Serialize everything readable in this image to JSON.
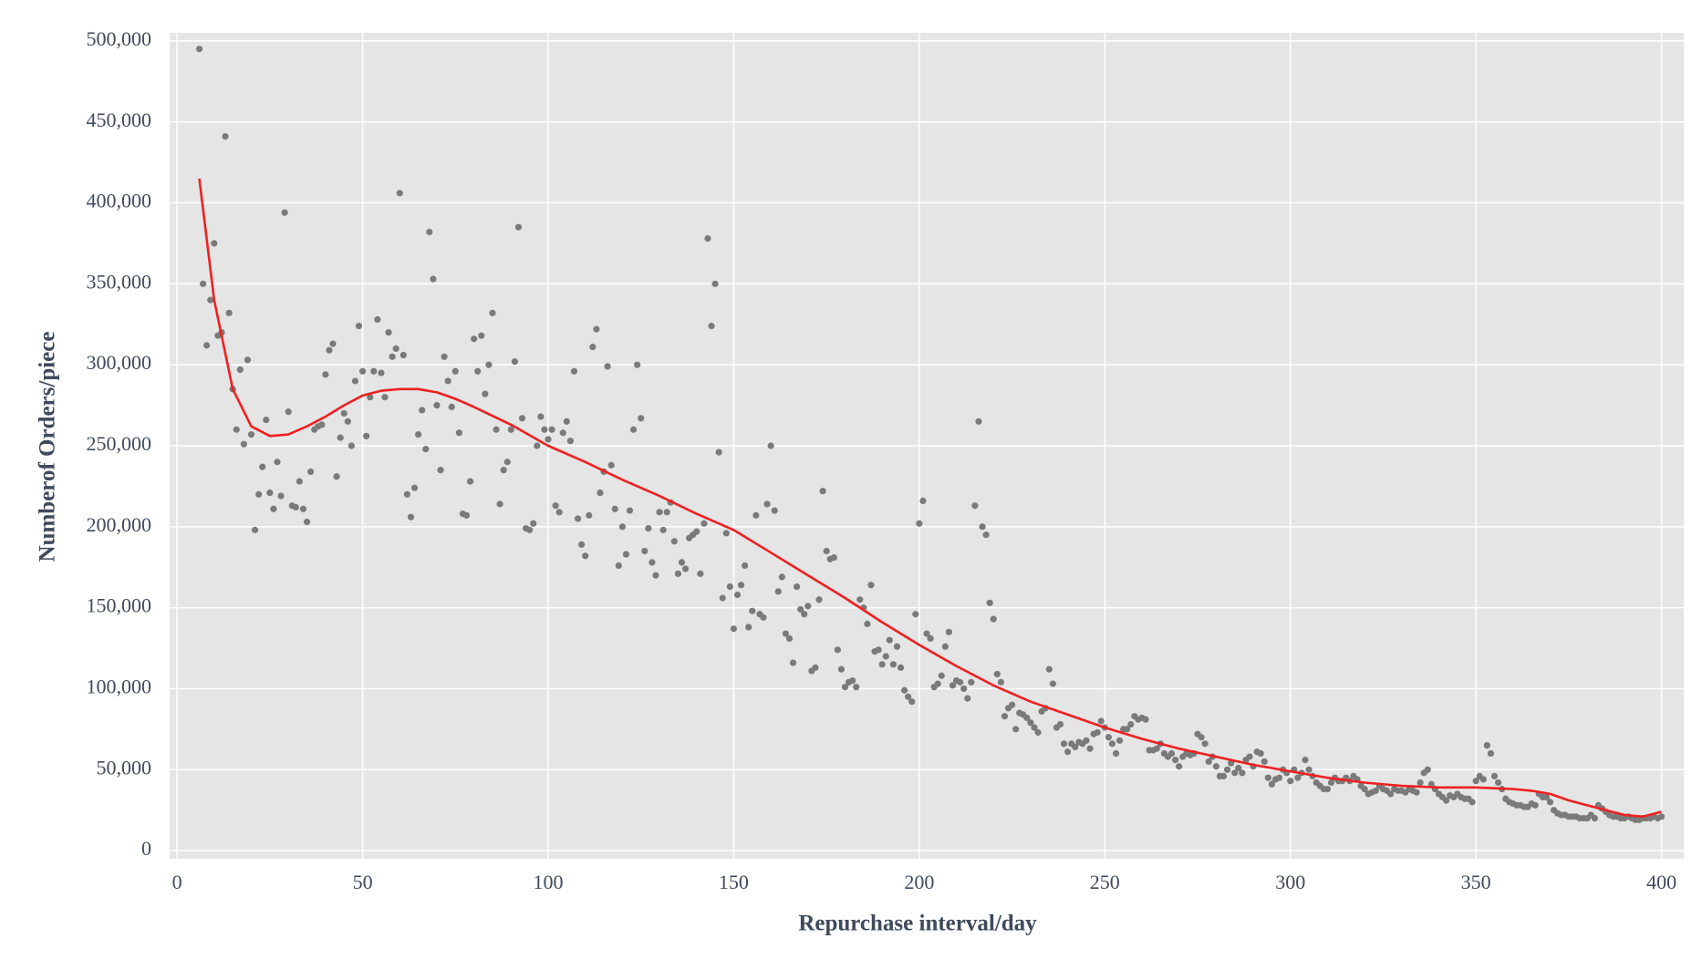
{
  "chart_data": {
    "type": "scatter",
    "xlabel": "Repurchase interval/day",
    "ylabel": "Numberof Orders/piece",
    "xlim": [
      -2,
      406
    ],
    "ylim": [
      -5000,
      505000
    ],
    "xticks": [
      0,
      50,
      100,
      150,
      200,
      250,
      300,
      350,
      400
    ],
    "yticks": [
      0,
      {
        "value": 50000,
        "label": "50,000"
      },
      {
        "value": 100000,
        "label": "100,000"
      },
      {
        "value": 150000,
        "label": "150,000"
      },
      {
        "value": 200000,
        "label": "200,000"
      },
      {
        "value": 250000,
        "label": "250,000"
      },
      {
        "value": 300000,
        "label": "300,000"
      },
      {
        "value": 350000,
        "label": "350,000"
      },
      {
        "value": 400000,
        "label": "400,000"
      },
      {
        "value": 450000,
        "label": "450,000"
      },
      {
        "value": 500000,
        "label": "500,000"
      }
    ],
    "grid": true,
    "series": [
      {
        "type": "scatter",
        "color": "#7a7a7a",
        "x": [
          6,
          7,
          8,
          9,
          10,
          11,
          12,
          13,
          14,
          15,
          16,
          17,
          18,
          19,
          20,
          21,
          22,
          23,
          24,
          25,
          26,
          27,
          28,
          29,
          30,
          31,
          32,
          33,
          34,
          35,
          36,
          37,
          38,
          39,
          40,
          41,
          42,
          43,
          44,
          45,
          46,
          47,
          48,
          49,
          50,
          51,
          52,
          53,
          54,
          55,
          56,
          57,
          58,
          59,
          60,
          61,
          62,
          63,
          64,
          65,
          66,
          67,
          68,
          69,
          70,
          71,
          72,
          73,
          74,
          75,
          76,
          77,
          78,
          79,
          80,
          81,
          82,
          83,
          84,
          85,
          86,
          87,
          88,
          89,
          90,
          91,
          92,
          93,
          94,
          95,
          96,
          97,
          98,
          99,
          100,
          101,
          102,
          103,
          104,
          105,
          106,
          107,
          108,
          109,
          110,
          111,
          112,
          113,
          114,
          115,
          116,
          117,
          118,
          119,
          120,
          121,
          122,
          123,
          124,
          125,
          126,
          127,
          128,
          129,
          130,
          131,
          132,
          133,
          134,
          135,
          136,
          137,
          138,
          139,
          140,
          141,
          142,
          143,
          144,
          145,
          146,
          147,
          148,
          149,
          150,
          151,
          152,
          153,
          154,
          155,
          156,
          157,
          158,
          159,
          160,
          161,
          162,
          163,
          164,
          165,
          166,
          167,
          168,
          169,
          170,
          171,
          172,
          173,
          174,
          175,
          176,
          177,
          178,
          179,
          180,
          181,
          182,
          183,
          184,
          185,
          186,
          187,
          188,
          189,
          190,
          191,
          192,
          193,
          194,
          195,
          196,
          197,
          198,
          199,
          200,
          201,
          202,
          203,
          204,
          205,
          206,
          207,
          208,
          209,
          210,
          211,
          212,
          213,
          214,
          215,
          216,
          217,
          218,
          219,
          220,
          221,
          222,
          223,
          224,
          225,
          226,
          227,
          228,
          229,
          230,
          231,
          232,
          233,
          234,
          235,
          236,
          237,
          238,
          239,
          240,
          241,
          242,
          243,
          244,
          245,
          246,
          247,
          248,
          249,
          250,
          251,
          252,
          253,
          254,
          255,
          256,
          257,
          258,
          259,
          260,
          261,
          262,
          263,
          264,
          265,
          266,
          267,
          268,
          269,
          270,
          271,
          272,
          273,
          274,
          275,
          276,
          277,
          278,
          279,
          280,
          281,
          282,
          283,
          284,
          285,
          286,
          287,
          288,
          289,
          290,
          291,
          292,
          293,
          294,
          295,
          296,
          297,
          298,
          299,
          300,
          301,
          302,
          303,
          304,
          305,
          306,
          307,
          308,
          309,
          310,
          311,
          312,
          313,
          314,
          315,
          316,
          317,
          318,
          319,
          320,
          321,
          322,
          323,
          324,
          325,
          326,
          327,
          328,
          329,
          330,
          331,
          332,
          333,
          334,
          335,
          336,
          337,
          338,
          339,
          340,
          341,
          342,
          343,
          344,
          345,
          346,
          347,
          348,
          349,
          350,
          351,
          352,
          353,
          354,
          355,
          356,
          357,
          358,
          359,
          360,
          361,
          362,
          363,
          364,
          365,
          366,
          367,
          368,
          369,
          370,
          371,
          372,
          373,
          374,
          375,
          376,
          377,
          378,
          379,
          380,
          381,
          382,
          383,
          384,
          385,
          386,
          387,
          388,
          389,
          390,
          391,
          392,
          393,
          394,
          395,
          396,
          397,
          398,
          399,
          400
        ],
        "values": [
          495000,
          350000,
          312000,
          340000,
          375000,
          318000,
          320000,
          441000,
          332000,
          285000,
          260000,
          297000,
          251000,
          303000,
          257000,
          198000,
          220000,
          237000,
          266000,
          221000,
          211000,
          240000,
          219000,
          394000,
          271000,
          213000,
          212000,
          228000,
          211000,
          203000,
          234000,
          260000,
          262000,
          263000,
          294000,
          309000,
          313000,
          231000,
          255000,
          270000,
          265000,
          250000,
          290000,
          324000,
          296000,
          256000,
          280000,
          296000,
          328000,
          295000,
          280000,
          320000,
          305000,
          310000,
          406000,
          306000,
          220000,
          206000,
          224000,
          257000,
          272000,
          248000,
          382000,
          353000,
          275000,
          235000,
          305000,
          290000,
          274000,
          296000,
          258000,
          208000,
          207000,
          228000,
          316000,
          296000,
          318000,
          282000,
          300000,
          332000,
          260000,
          214000,
          235000,
          240000,
          260000,
          302000,
          385000,
          267000,
          199000,
          198000,
          202000,
          250000,
          268000,
          260000,
          254000,
          260000,
          213000,
          209000,
          258000,
          265000,
          253000,
          296000,
          205000,
          189000,
          182000,
          207000,
          311000,
          322000,
          221000,
          234000,
          299000,
          238000,
          211000,
          176000,
          200000,
          183000,
          210000,
          260000,
          300000,
          267000,
          185000,
          199000,
          178000,
          170000,
          209000,
          198000,
          209000,
          215000,
          191000,
          171000,
          178000,
          174000,
          193000,
          195000,
          197000,
          171000,
          202000,
          378000,
          324000,
          350000,
          246000,
          156000,
          196000,
          163000,
          137000,
          158000,
          164000,
          176000,
          138000,
          148000,
          207000,
          146000,
          144000,
          214000,
          250000,
          210000,
          160000,
          169000,
          134000,
          131000,
          116000,
          163000,
          149000,
          146000,
          151000,
          111000,
          113000,
          155000,
          222000,
          185000,
          180000,
          181000,
          124000,
          112000,
          101000,
          104000,
          105000,
          101000,
          155000,
          150000,
          140000,
          164000,
          123000,
          124000,
          115000,
          120000,
          130000,
          115000,
          126000,
          113000,
          99000,
          95000,
          92000,
          146000,
          202000,
          216000,
          134000,
          131000,
          101000,
          103000,
          108000,
          126000,
          135000,
          102000,
          105000,
          104000,
          100000,
          94000,
          104000,
          213000,
          265000,
          200000,
          195000,
          153000,
          143000,
          109000,
          104000,
          83000,
          88000,
          90000,
          75000,
          85000,
          84000,
          82000,
          79000,
          76000,
          73000,
          86000,
          88000,
          112000,
          103000,
          76000,
          78000,
          66000,
          61000,
          66000,
          64000,
          67000,
          66000,
          68000,
          63000,
          72000,
          73000,
          80000,
          76000,
          70000,
          66000,
          60000,
          68000,
          75000,
          75000,
          78000,
          83000,
          81000,
          82000,
          81000,
          62000,
          62000,
          63000,
          66000,
          60000,
          58000,
          60000,
          56000,
          52000,
          58000,
          60000,
          59000,
          60000,
          72000,
          70000,
          66000,
          55000,
          58000,
          52000,
          46000,
          46000,
          50000,
          54000,
          48000,
          51000,
          48000,
          56000,
          58000,
          52000,
          61000,
          60000,
          55000,
          45000,
          41000,
          44000,
          45000,
          50000,
          48000,
          43000,
          50000,
          45000,
          48000,
          56000,
          50000,
          46000,
          42000,
          40000,
          38000,
          38000,
          42000,
          45000,
          43000,
          43000,
          45000,
          43000,
          46000,
          44000,
          40000,
          38000,
          35000,
          36000,
          37000,
          40000,
          38000,
          37000,
          35000,
          38000,
          37000,
          37000,
          36000,
          38000,
          37000,
          36000,
          42000,
          48000,
          50000,
          41000,
          38000,
          35000,
          33000,
          31000,
          34000,
          33000,
          35000,
          33000,
          32000,
          32000,
          30000,
          43000,
          46000,
          44000,
          65000,
          60000,
          46000,
          42000,
          38000,
          32000,
          30000,
          29000,
          28000,
          28000,
          27000,
          27000,
          29000,
          28000,
          35000,
          33000,
          33000,
          30000,
          25000,
          23000,
          22000,
          22000,
          21000,
          21000,
          21000,
          20000,
          20000,
          20000,
          22000,
          20000,
          28000,
          26000,
          24000,
          22000,
          21000,
          21000,
          20000,
          20000,
          21000,
          20000,
          19000,
          19000,
          20000,
          20000,
          20000,
          21000,
          20000,
          21000
        ]
      },
      {
        "type": "line",
        "color": "#f02020",
        "x": [
          6,
          10,
          15,
          20,
          25,
          30,
          35,
          40,
          45,
          50,
          55,
          60,
          65,
          70,
          75,
          80,
          90,
          100,
          110,
          120,
          130,
          140,
          150,
          160,
          170,
          180,
          190,
          200,
          210,
          220,
          230,
          240,
          250,
          260,
          270,
          280,
          290,
          300,
          310,
          320,
          330,
          340,
          350,
          360,
          365,
          370,
          375,
          380,
          385,
          390,
          395,
          400
        ],
        "values": [
          415000,
          340000,
          285000,
          262000,
          256000,
          257000,
          262000,
          268000,
          275000,
          281000,
          284000,
          285000,
          285000,
          283000,
          279000,
          274000,
          263000,
          250000,
          240000,
          229000,
          219000,
          208000,
          198000,
          184000,
          170000,
          156000,
          141000,
          127000,
          114000,
          102000,
          92000,
          84000,
          76000,
          69000,
          63000,
          58000,
          53000,
          49000,
          45000,
          42000,
          40000,
          39000,
          39000,
          38000,
          37000,
          35000,
          31000,
          28000,
          25000,
          22000,
          21000,
          24000
        ]
      }
    ]
  }
}
